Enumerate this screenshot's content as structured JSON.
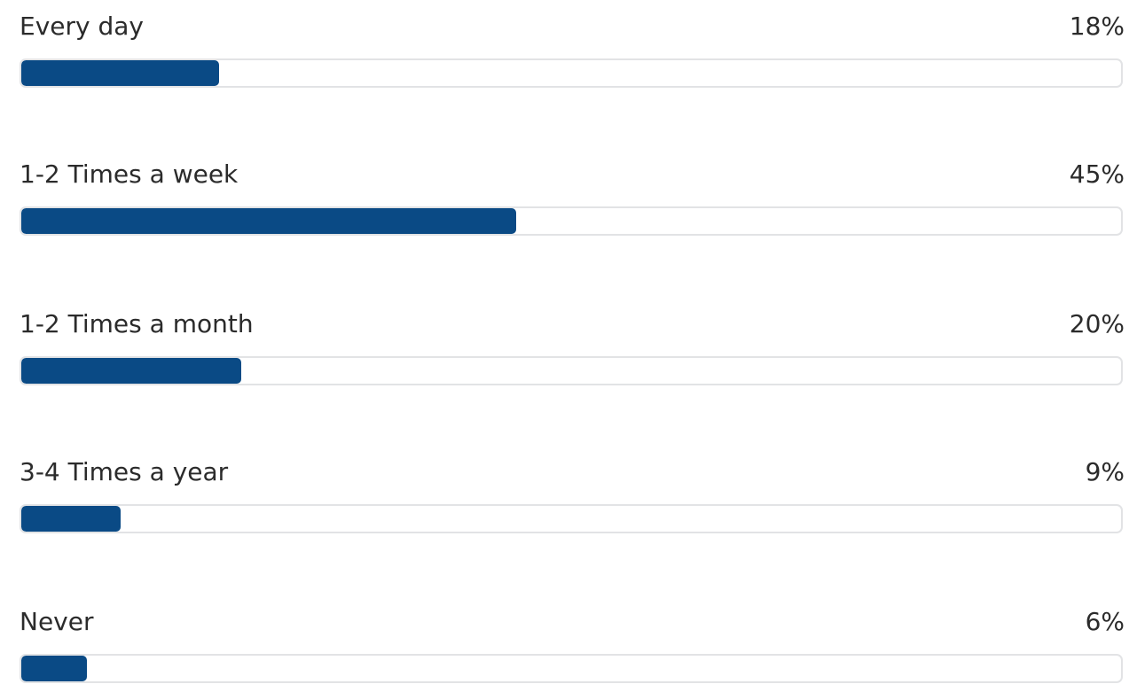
{
  "chart_data": {
    "type": "bar",
    "orientation": "horizontal",
    "categories": [
      "Every day",
      "1-2 Times a week",
      "1-2 Times a month",
      "3-4 Times a year",
      "Never"
    ],
    "values": [
      18,
      45,
      20,
      9,
      6
    ],
    "value_labels": [
      "18%",
      "45%",
      "20%",
      "9%",
      "6%"
    ],
    "unit": "%",
    "xlim": [
      0,
      100
    ],
    "bar_color": "#0a4a85",
    "track_border_color": "#e2e3e5",
    "grid": false
  }
}
